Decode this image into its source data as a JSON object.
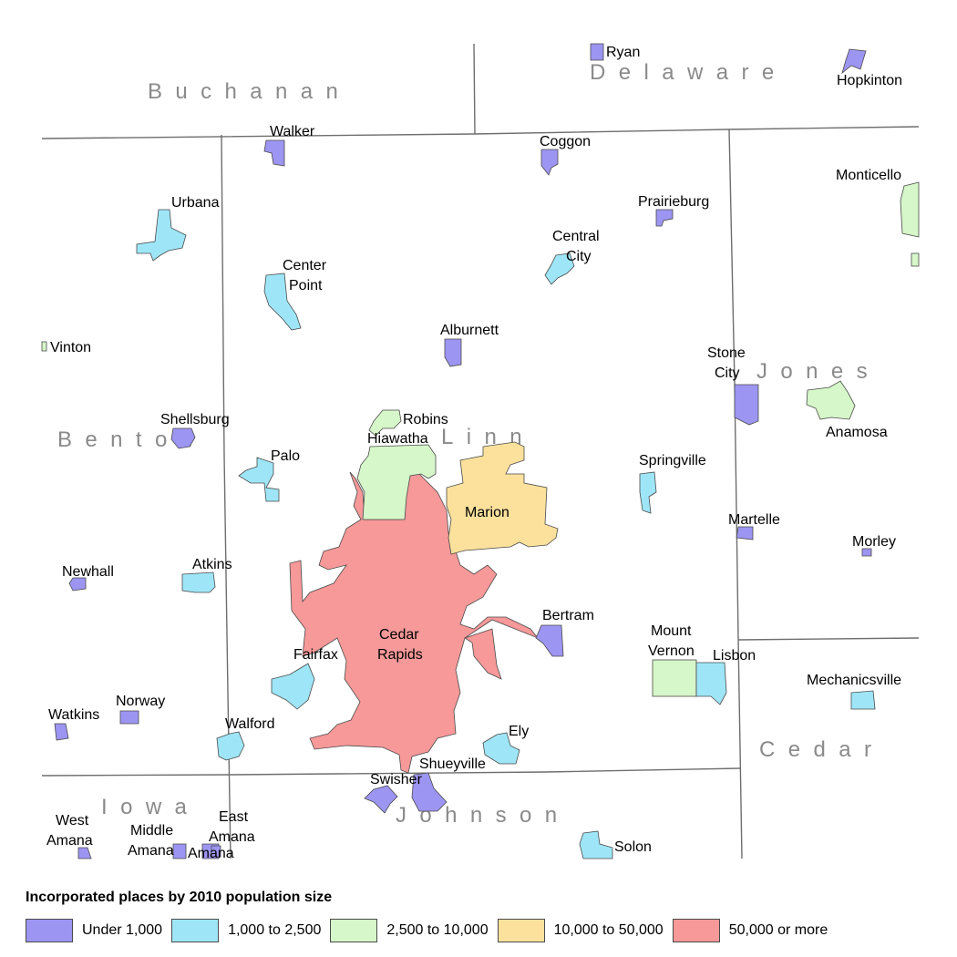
{
  "legend": {
    "title": "Incorporated places by 2010 population size",
    "classes": [
      {
        "label": "Under 1,000",
        "color": "#9d95f2"
      },
      {
        "label": "1,000 to 2,500",
        "color": "#9ee6f7"
      },
      {
        "label": "2,500 to 10,000",
        "color": "#d6f7c9"
      },
      {
        "label": "10,000 to 50,000",
        "color": "#fbe19c"
      },
      {
        "label": "50,000 or more",
        "color": "#f79999"
      }
    ]
  },
  "counties": [
    "Buchanan",
    "Delaware",
    "Benton",
    "Linn",
    "Jones",
    "Cedar",
    "Iowa",
    "Johnson"
  ],
  "places": {
    "ryan": "Ryan",
    "hopkinton": "Hopkinton",
    "walker": "Walker",
    "coggon": "Coggon",
    "monticello": "Monticello",
    "urbana": "Urbana",
    "prairieburg": "Prairieburg",
    "central_city": [
      "Central",
      "City"
    ],
    "center_point": [
      "Center",
      "Point"
    ],
    "alburnett": "Alburnett",
    "vinton": "Vinton",
    "stone_city": [
      "Stone",
      "City"
    ],
    "shellsburg": "Shellsburg",
    "robins": "Robins",
    "hiawatha": "Hiawatha",
    "anamosa": "Anamosa",
    "palo": "Palo",
    "springville": "Springville",
    "marion": "Marion",
    "martelle": "Martelle",
    "morley": "Morley",
    "newhall": "Newhall",
    "atkins": "Atkins",
    "bertram": "Bertram",
    "cedar_rapids": [
      "Cedar",
      "Rapids"
    ],
    "mount_vernon": [
      "Mount",
      "Vernon"
    ],
    "lisbon": "Lisbon",
    "fairfax": "Fairfax",
    "mechanicsville": "Mechanicsville",
    "norway": "Norway",
    "watkins": "Watkins",
    "walford": "Walford",
    "ely": "Ely",
    "shueyville": "Shueyville",
    "swisher": "Swisher",
    "west_amana": [
      "West",
      "Amana"
    ],
    "middle_amana": [
      "Middle",
      "Amana"
    ],
    "east_amana": [
      "East",
      "Amana"
    ],
    "amana": "Amana",
    "solon": "Solon"
  }
}
